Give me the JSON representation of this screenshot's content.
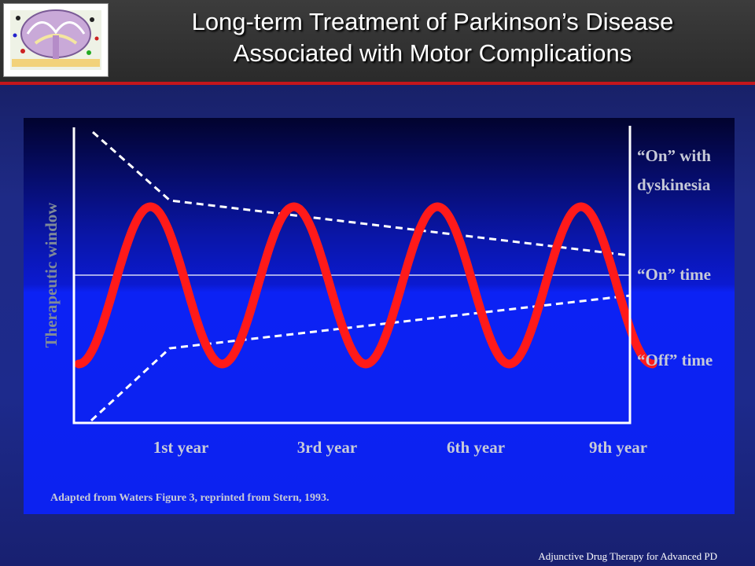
{
  "header": {
    "title_line1": "Long-term Treatment of Parkinson’s Disease",
    "title_line2": "Associated with Motor Complications"
  },
  "chart_data": {
    "type": "line",
    "ylabel": "Therapeutic window",
    "x_tick_labels": [
      "1st year",
      "3rd year",
      "6th year",
      "9th year"
    ],
    "zone_labels": {
      "on_with_dyskinesia_line1": "“On” with",
      "on_with_dyskinesia_line2": "dyskinesia",
      "on_time": "“On” time",
      "off_time": "“Off” time"
    },
    "source_note": "Adapted from Waters Figure 3, reprinted from Stern, 1993.",
    "grid": false,
    "legend": "none",
    "colors": {
      "response_curve": "#ff1a1a",
      "threshold_lines": "#ffffff",
      "axes": "#ffffff"
    }
  },
  "footer": {
    "text": "Adjunctive Drug Therapy for Advanced PD"
  }
}
